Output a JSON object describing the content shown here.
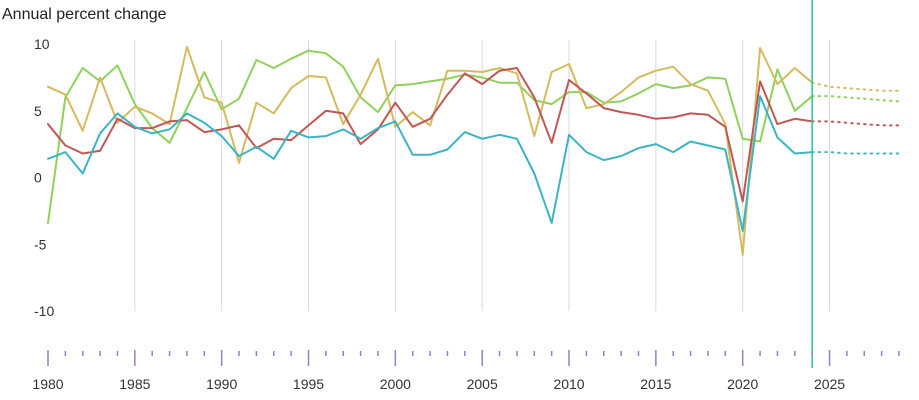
{
  "chart_data": {
    "type": "line",
    "ylabel": "Annual percent change",
    "ylim": [
      -10,
      10
    ],
    "xlim": [
      1980,
      2029
    ],
    "yticks": [
      10,
      5,
      0,
      -5,
      -10
    ],
    "xticks": [
      1980,
      1985,
      1990,
      1995,
      2000,
      2005,
      2010,
      2015,
      2020,
      2025
    ],
    "vertical_gridlines": [
      1985,
      1990,
      1995,
      2000,
      2005,
      2010,
      2015,
      2020,
      2025
    ],
    "projection_start": 2024,
    "colors": {
      "marker_line": "#2ec4a0",
      "grid": "#d9d9d9",
      "tick": "#8c84c4"
    },
    "series": [
      {
        "color": "#8fd15a",
        "x": [
          1980,
          1981,
          1982,
          1983,
          1984,
          1985,
          1986,
          1987,
          1988,
          1989,
          1990,
          1991,
          1992,
          1993,
          1994,
          1995,
          1996,
          1997,
          1998,
          1999,
          2000,
          2001,
          2002,
          2003,
          2004,
          2005,
          2006,
          2007,
          2008,
          2009,
          2010,
          2011,
          2012,
          2013,
          2014,
          2015,
          2016,
          2017,
          2018,
          2019,
          2020,
          2021,
          2022,
          2023,
          2024,
          2025,
          2026,
          2027,
          2028,
          2029
        ],
        "y": [
          -3.4,
          6.0,
          8.2,
          7.2,
          8.4,
          5.5,
          3.7,
          2.6,
          5.2,
          7.9,
          5.1,
          5.9,
          8.8,
          8.2,
          8.9,
          9.5,
          9.3,
          8.3,
          6.0,
          4.9,
          6.9,
          7.0,
          7.2,
          7.4,
          7.7,
          7.5,
          7.1,
          7.1,
          5.8,
          5.5,
          6.4,
          6.4,
          5.6,
          5.7,
          6.3,
          7.0,
          6.7,
          6.9,
          7.5,
          7.4,
          2.9,
          2.7,
          8.1,
          5.0,
          6.1,
          6.1,
          6.0,
          5.9,
          5.8,
          5.7
        ]
      },
      {
        "color": "#d4bb5e",
        "x": [
          1980,
          1981,
          1982,
          1983,
          1984,
          1985,
          1986,
          1987,
          1988,
          1989,
          1990,
          1991,
          1992,
          1993,
          1994,
          1995,
          1996,
          1997,
          1998,
          1999,
          2000,
          2001,
          2002,
          2003,
          2004,
          2005,
          2006,
          2007,
          2008,
          2009,
          2010,
          2011,
          2012,
          2013,
          2014,
          2015,
          2016,
          2017,
          2018,
          2019,
          2020,
          2021,
          2022,
          2023,
          2024,
          2025,
          2026,
          2027,
          2028,
          2029
        ],
        "y": [
          6.8,
          6.2,
          3.5,
          7.5,
          4.1,
          5.3,
          4.8,
          4.0,
          9.8,
          6.0,
          5.6,
          1.1,
          5.6,
          4.8,
          6.7,
          7.6,
          7.5,
          4.0,
          6.2,
          8.9,
          3.8,
          4.9,
          3.9,
          8.0,
          8.0,
          7.9,
          8.2,
          7.8,
          3.1,
          7.9,
          8.5,
          5.2,
          5.5,
          6.4,
          7.5,
          8.0,
          8.3,
          7.0,
          6.5,
          4.0,
          -5.8,
          9.7,
          7.0,
          8.2,
          7.1,
          6.8,
          6.7,
          6.6,
          6.5,
          6.5
        ]
      },
      {
        "color": "#c05755",
        "x": [
          1980,
          1981,
          1982,
          1983,
          1984,
          1985,
          1986,
          1987,
          1988,
          1989,
          1990,
          1991,
          1992,
          1993,
          1994,
          1995,
          1996,
          1997,
          1998,
          1999,
          2000,
          2001,
          2002,
          2003,
          2004,
          2005,
          2006,
          2007,
          2008,
          2009,
          2010,
          2011,
          2012,
          2013,
          2014,
          2015,
          2016,
          2017,
          2018,
          2019,
          2020,
          2021,
          2022,
          2023,
          2024,
          2025,
          2026,
          2027,
          2028,
          2029
        ],
        "y": [
          4.0,
          2.4,
          1.8,
          2.0,
          4.4,
          3.7,
          3.7,
          4.2,
          4.3,
          3.4,
          3.6,
          3.9,
          2.2,
          2.9,
          2.8,
          3.9,
          5.0,
          4.8,
          2.5,
          3.6,
          5.6,
          3.8,
          4.4,
          6.2,
          7.8,
          7.0,
          8.0,
          8.2,
          6.0,
          2.6,
          7.3,
          6.3,
          5.2,
          4.9,
          4.7,
          4.4,
          4.5,
          4.8,
          4.7,
          3.8,
          -1.8,
          7.2,
          4.0,
          4.4,
          4.2,
          4.2,
          4.1,
          4.0,
          3.9,
          3.9
        ]
      },
      {
        "color": "#3db4c4",
        "x": [
          1980,
          1981,
          1982,
          1983,
          1984,
          1985,
          1986,
          1987,
          1988,
          1989,
          1990,
          1991,
          1992,
          1993,
          1994,
          1995,
          1996,
          1997,
          1998,
          1999,
          2000,
          2001,
          2002,
          2003,
          2004,
          2005,
          2006,
          2007,
          2008,
          2009,
          2010,
          2011,
          2012,
          2013,
          2014,
          2015,
          2016,
          2017,
          2018,
          2019,
          2020,
          2021,
          2022,
          2023,
          2024,
          2025,
          2026,
          2027,
          2028,
          2029
        ],
        "y": [
          1.4,
          1.9,
          0.3,
          3.3,
          4.8,
          3.8,
          3.3,
          3.6,
          4.8,
          4.1,
          3.1,
          1.6,
          2.3,
          1.4,
          3.5,
          3.0,
          3.1,
          3.6,
          2.9,
          3.7,
          4.2,
          1.7,
          1.7,
          2.1,
          3.4,
          2.9,
          3.2,
          2.9,
          0.3,
          -3.4,
          3.2,
          1.9,
          1.3,
          1.6,
          2.2,
          2.5,
          1.9,
          2.7,
          2.4,
          2.1,
          -4.0,
          6.1,
          3.0,
          1.8,
          1.9,
          1.9,
          1.8,
          1.8,
          1.8,
          1.8
        ]
      }
    ]
  }
}
